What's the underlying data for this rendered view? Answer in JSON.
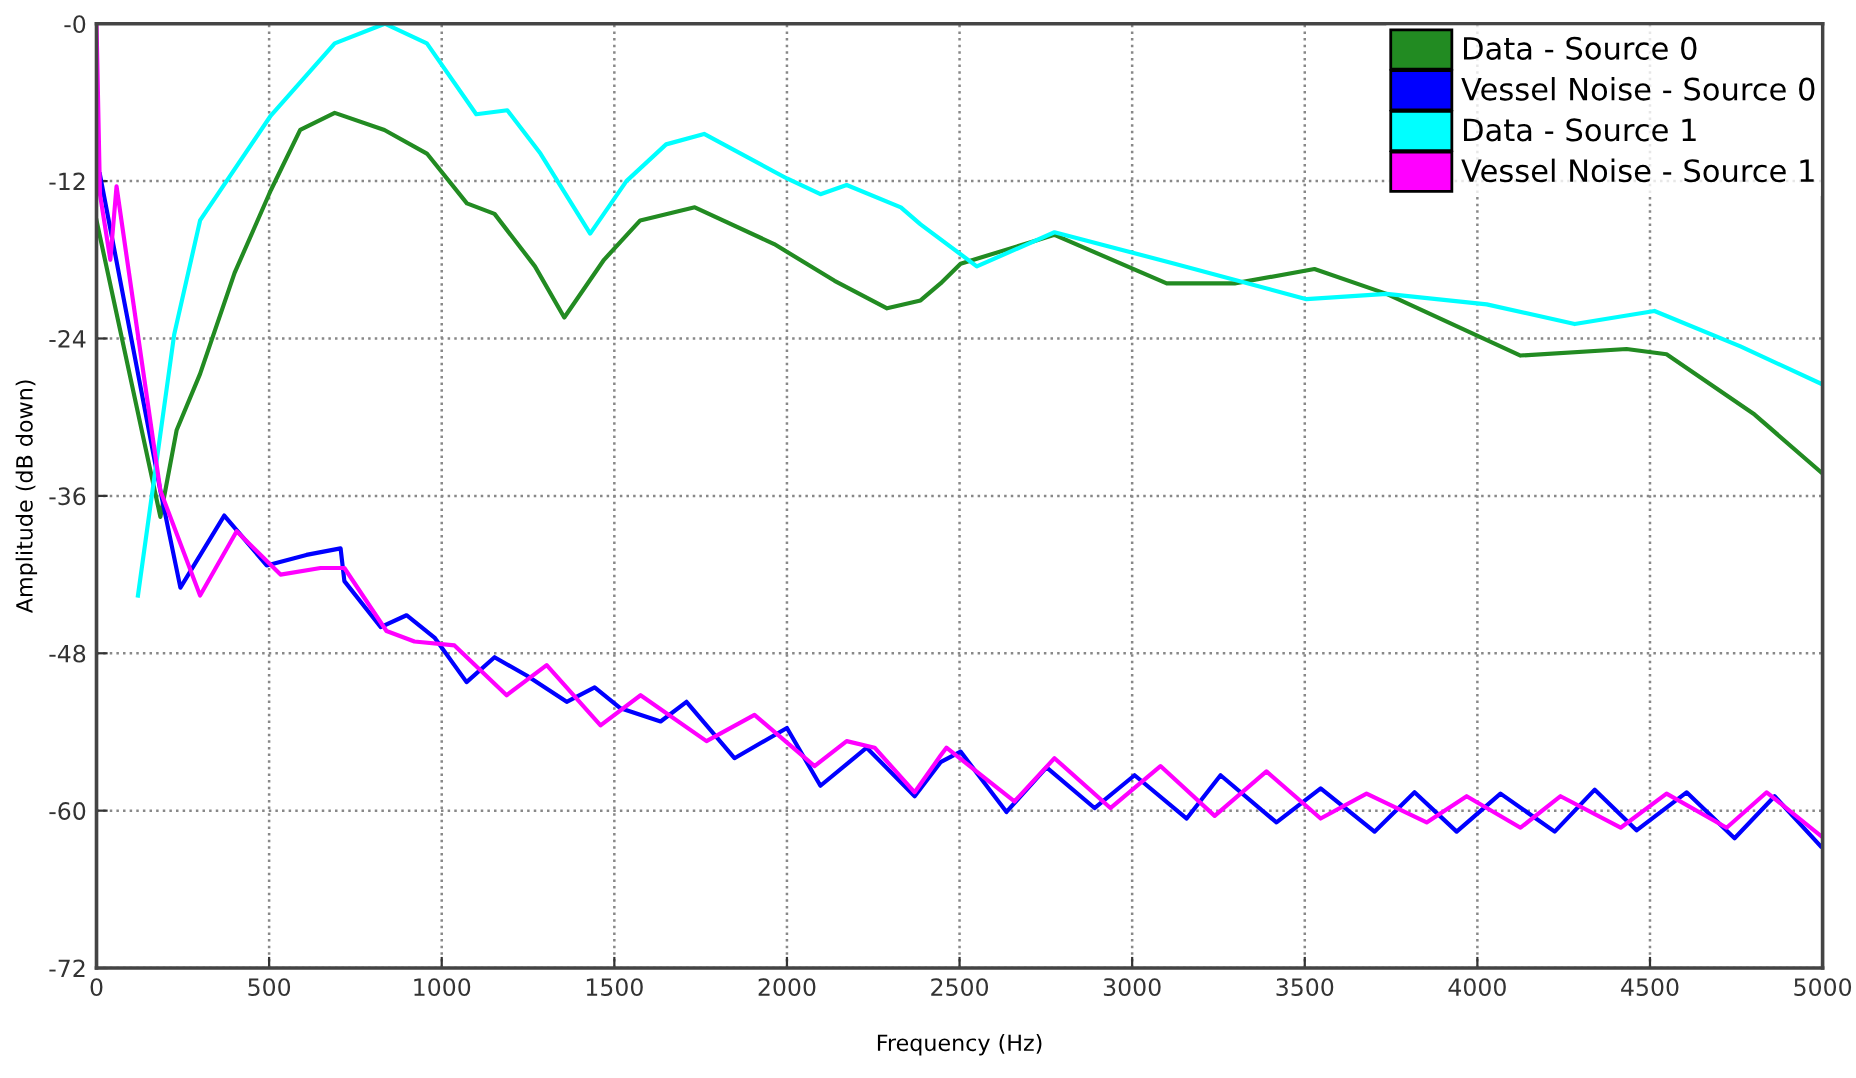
{
  "chart_data": {
    "type": "line",
    "xlabel": "Frequency (Hz)",
    "ylabel": "Amplitude (dB down)",
    "xlim": [
      0,
      5000
    ],
    "ylim": [
      -72,
      0
    ],
    "xticks": [
      0,
      500,
      1000,
      1500,
      2000,
      2500,
      3000,
      3500,
      4000,
      4500,
      5000
    ],
    "yticks": [
      {
        "value": 0,
        "label": "-0"
      },
      -12,
      -24,
      -36,
      -48,
      -60,
      -72
    ],
    "grid": true,
    "legend": "top right",
    "line_style": "solid",
    "series": [
      {
        "name": "Data - Source 0",
        "color": "#228b22",
        "x": [
          0,
          185,
          232,
          300,
          400,
          505,
          590,
          690,
          834,
          957,
          1073,
          1153,
          1270,
          1355,
          1470,
          1575,
          1733,
          1963,
          2138,
          2290,
          2387,
          2445,
          2503,
          2775,
          3100,
          3297,
          3528,
          3737,
          4125,
          4432,
          4548,
          4803,
          5000
        ],
        "values": [
          -15,
          -37.6,
          -31,
          -26.7,
          -19,
          -12.7,
          -8.1,
          -6.8,
          -8.1,
          -9.9,
          -13.7,
          -14.5,
          -18.5,
          -22.4,
          -18,
          -15,
          -14,
          -16.8,
          -19.6,
          -21.7,
          -21.1,
          -19.8,
          -18.3,
          -16.1,
          -19.8,
          -19.8,
          -18.7,
          -20.6,
          -25.3,
          -24.8,
          -25.2,
          -29.8,
          -34.3
        ]
      },
      {
        "name": "Vessel Noise - Source 0",
        "color": "#0000ff",
        "x": [
          10,
          185,
          243,
          370,
          493,
          608,
          707,
          718,
          823,
          898,
          979,
          1072,
          1153,
          1246,
          1362,
          1443,
          1518,
          1634,
          1709,
          1848,
          2000,
          2097,
          2231,
          2370,
          2445,
          2503,
          2636,
          2752,
          2891,
          3007,
          3158,
          3256,
          3418,
          3546,
          3702,
          3818,
          3940,
          4067,
          4224,
          4340,
          4461,
          4606,
          4745,
          4861,
          4994
        ],
        "values": [
          -11.5,
          -35.6,
          -43,
          -37.5,
          -41.3,
          -40.5,
          -40,
          -42.5,
          -46,
          -45.1,
          -46.8,
          -50.2,
          -48.3,
          -49.7,
          -51.7,
          -50.6,
          -52.2,
          -53.2,
          -51.7,
          -56,
          -53.7,
          -58.1,
          -55.2,
          -58.9,
          -56.3,
          -55.5,
          -60.1,
          -56.7,
          -59.8,
          -57.3,
          -60.6,
          -57.3,
          -60.9,
          -58.3,
          -61.6,
          -58.6,
          -61.6,
          -58.7,
          -61.6,
          -58.4,
          -61.5,
          -58.6,
          -62.1,
          -58.9,
          -62.7
        ]
      },
      {
        "name": "Data - Source 1",
        "color": "#00ffff",
        "x": [
          120,
          225,
          300,
          505,
          690,
          835,
          957,
          1100,
          1190,
          1286,
          1430,
          1535,
          1650,
          1760,
          2000,
          2097,
          2173,
          2330,
          2387,
          2550,
          2775,
          3123,
          3505,
          3737,
          4027,
          4282,
          4513,
          4762,
          5000
        ],
        "values": [
          -43.6,
          -23.7,
          -15,
          -7,
          -1.5,
          0,
          -1.5,
          -6.9,
          -6.6,
          -9.9,
          -16,
          -12,
          -9.2,
          -8.4,
          -11.8,
          -13,
          -12.3,
          -14,
          -15.3,
          -18.5,
          -15.9,
          -18.3,
          -21,
          -20.6,
          -21.4,
          -22.9,
          -21.9,
          -24.6,
          -27.5
        ]
      },
      {
        "name": "Vessel Noise - Source 1",
        "color": "#ff00ff",
        "x": [
          0,
          10,
          40,
          58,
          185,
          300,
          406,
          533,
          649,
          718,
          840,
          921,
          1037,
          1188,
          1304,
          1460,
          1576,
          1767,
          1906,
          2080,
          2173,
          2254,
          2370,
          2445,
          2462,
          2659,
          2775,
          2937,
          3082,
          3239,
          3389,
          3546,
          3679,
          3853,
          3969,
          4125,
          4241,
          4415,
          4548,
          4722,
          4838,
          4994
        ],
        "values": [
          0,
          -13,
          -18,
          -12.4,
          -35.6,
          -43.6,
          -38.7,
          -42,
          -41.5,
          -41.5,
          -46.3,
          -47.1,
          -47.4,
          -51.2,
          -48.9,
          -53.5,
          -51.2,
          -54.7,
          -52.7,
          -56.6,
          -54.7,
          -55.2,
          -58.6,
          -55.8,
          -55.2,
          -59.3,
          -56,
          -59.8,
          -56.6,
          -60.4,
          -57,
          -60.6,
          -58.7,
          -60.9,
          -58.9,
          -61.3,
          -58.9,
          -61.3,
          -58.7,
          -61.3,
          -58.6,
          -61.9
        ]
      }
    ]
  }
}
